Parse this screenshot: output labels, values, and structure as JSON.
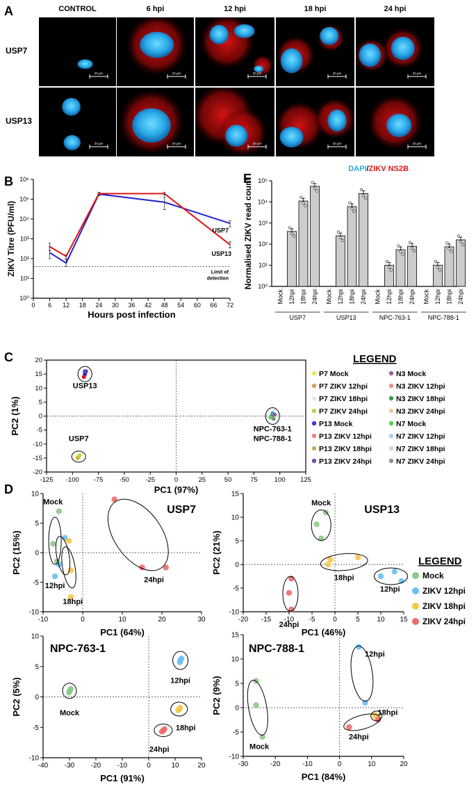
{
  "panelA": {
    "letter": "A",
    "columns": [
      "CONTROL",
      "6 hpi",
      "12 hpi",
      "18 hpi",
      "24 hpi"
    ],
    "rows": [
      "USP7",
      "USP13"
    ],
    "scalebars": [
      [
        "20 µm",
        "20 µm",
        "20 µm",
        "20 µm",
        "20 µm"
      ],
      [
        "20 µm",
        "20 µm",
        "20 µm",
        "20 µm",
        "20 µm"
      ]
    ],
    "legend_dapi": "DAPI",
    "legend_sep": "/",
    "legend_ns2b": "ZIKV NS2B",
    "colors": {
      "dapi": "#2aa9e8",
      "ns2b": "#e01515"
    }
  },
  "panelB": {
    "letter": "B"
  },
  "panelC": {
    "letter": "C"
  },
  "panelD": {
    "letter": "D"
  },
  "panelE": {
    "letter": "E"
  },
  "chart_data": [
    {
      "id": "B",
      "type": "line",
      "xlabel": "Hours post infection",
      "ylabel": "ZIKV Titre (PFU/ml)",
      "xticks": [
        0,
        6,
        12,
        18,
        24,
        30,
        36,
        42,
        48,
        54,
        60,
        66,
        72
      ],
      "xlim": [
        0,
        72
      ],
      "yscale": "log",
      "ylim": [
        1,
        1000000
      ],
      "yticks": [
        "10⁰",
        "10¹",
        "10²",
        "10³",
        "10⁴",
        "10⁵",
        "10⁶"
      ],
      "x": [
        6,
        12,
        24,
        48,
        72
      ],
      "series": [
        {
          "name": "USP7",
          "color": "#2020d0",
          "values": [
            200,
            60,
            180000,
            70000,
            6000
          ],
          "err": [
            [
              100,
              400
            ],
            [
              40,
              90
            ],
            [
              150000,
              220000
            ],
            [
              30000,
              130000
            ],
            [
              4000,
              8000
            ]
          ]
        },
        {
          "name": "USP13",
          "color": "#e01515",
          "values": [
            400,
            130,
            190000,
            190000,
            500
          ],
          "err": [
            [
              250,
              600
            ],
            [
              100,
              160
            ],
            [
              160000,
              220000
            ],
            [
              160000,
              220000
            ],
            [
              350,
              700
            ]
          ]
        }
      ],
      "limit_of_detection": 40,
      "limit_label": [
        "Limit of",
        "detection"
      ],
      "series_labels": [
        "USP7",
        "USP13"
      ]
    },
    {
      "id": "E",
      "type": "bar",
      "ylabel": "Normalised ZIKV read count",
      "yscale": "log",
      "ylim": [
        1,
        100000
      ],
      "yticks": [
        "10⁰",
        "10¹",
        "10²",
        "10³",
        "10⁴",
        "10⁵"
      ],
      "groups": [
        {
          "name": "USP7",
          "categories": [
            "Mock",
            "12hpi",
            "18hpi",
            "24hpi"
          ],
          "values": [
            1,
            400,
            11000,
            55000
          ]
        },
        {
          "name": "USP13",
          "categories": [
            "Mock",
            "12hpi",
            "18hpi",
            "24hpi"
          ],
          "values": [
            1,
            250,
            6000,
            25000
          ]
        },
        {
          "name": "NPC-763-1",
          "categories": [
            "Mock",
            "12hpi",
            "18hpi",
            "24hpi"
          ],
          "values": [
            1,
            10,
            55,
            80
          ]
        },
        {
          "name": "NPC-788-1",
          "categories": [
            "Mock",
            "12hpi",
            "18hpi",
            "24hpi"
          ],
          "values": [
            1,
            10,
            75,
            160
          ]
        }
      ]
    },
    {
      "id": "C",
      "type": "scatter",
      "xlabel": "PC1 (97%)",
      "ylabel": "PC2 (1%)",
      "xlim": [
        -125,
        125
      ],
      "ylim": [
        -20,
        20
      ],
      "xticks": [
        -125,
        -100,
        -75,
        -50,
        -25,
        0,
        25,
        50,
        75,
        100,
        125
      ],
      "yticks": [
        -20,
        -15,
        -10,
        -5,
        0,
        5,
        10,
        15,
        20
      ],
      "clusters": [
        {
          "label": "USP13",
          "points": [
            [
              -88,
              15,
              "#2020d0"
            ],
            [
              -89,
              14,
              "#e01515"
            ],
            [
              -87,
              16,
              "#6a2fb0"
            ],
            [
              -88,
              16,
              "#4a4ad0"
            ]
          ]
        },
        {
          "label": "USP7",
          "points": [
            [
              -94,
              -14.5,
              "#e8c820"
            ],
            [
              -93,
              -14,
              "#d8d040"
            ],
            [
              -95,
              -15,
              "#c8b830"
            ]
          ]
        },
        {
          "label": "NPC-763-1\nNPC-788-1",
          "points": [
            [
              92,
              0,
              "#3aa040"
            ],
            [
              94,
              -1,
              "#888888"
            ],
            [
              93,
              1,
              "#2aa9e8"
            ],
            [
              91,
              -0.5,
              "#66cc66"
            ],
            [
              95,
              0.5,
              "#9a5aa0"
            ]
          ]
        }
      ],
      "legend_title": "LEGEND",
      "legend": [
        {
          "label": "P7 Mock",
          "color": "#f0e84a"
        },
        {
          "label": "P7 ZIKV 12hpi",
          "color": "#d4a060"
        },
        {
          "label": "P7 ZIKV 18hpi",
          "color": "#e8e8e8"
        },
        {
          "label": "P7 ZIKV 24hpi",
          "color": "#c8c858"
        },
        {
          "label": "P13 Mock",
          "color": "#3a3ad8"
        },
        {
          "label": "P13 ZIKV 12hpi",
          "color": "#f08080"
        },
        {
          "label": "P13 ZIKV 18hpi",
          "color": "#c8a860"
        },
        {
          "label": "P13 ZIKV 24hpi",
          "color": "#7050a8"
        },
        {
          "label": "N3 Mock",
          "color": "#a0609a"
        },
        {
          "label": "N3 ZIKV 12hpi",
          "color": "#e89090"
        },
        {
          "label": "N3 ZIKV 18hpi",
          "color": "#3a9a50"
        },
        {
          "label": "N3 ZIKV 24hpi",
          "color": "#f0c8a0"
        },
        {
          "label": "N7 Mock",
          "color": "#50d050"
        },
        {
          "label": "N7 ZIKV 12hpi",
          "color": "#a8d0f0"
        },
        {
          "label": "N7 ZIKV 18hpi",
          "color": "#c0d8f0"
        },
        {
          "label": "N7 ZIKV 24hpi",
          "color": "#909090"
        }
      ]
    },
    {
      "id": "D1",
      "type": "scatter",
      "title": "USP7",
      "xlabel": "PC1 (64%)",
      "ylabel": "PC2 (15%)",
      "xlim": [
        -10,
        30
      ],
      "ylim": [
        -10,
        10
      ],
      "xticks": [
        -10,
        0,
        10,
        20,
        30
      ],
      "yticks": [
        -10,
        -5,
        0,
        5,
        10
      ],
      "groups": [
        {
          "label": "Mock",
          "color": "#8fc98a",
          "points": [
            [
              -6,
              7
            ],
            [
              -7.5,
              1.5
            ],
            [
              -6.5,
              -1.5
            ]
          ]
        },
        {
          "label": "12hpi",
          "color": "#6cc0f0",
          "points": [
            [
              -4.5,
              2.5
            ],
            [
              -6,
              -2
            ],
            [
              -7,
              -4
            ]
          ]
        },
        {
          "label": "18hpi",
          "color": "#f5c84a",
          "points": [
            [
              -3.5,
              2
            ],
            [
              -3,
              -3
            ],
            [
              -3,
              -7.5
            ]
          ]
        },
        {
          "label": "24hpi",
          "color": "#ee6a6a",
          "points": [
            [
              8,
              9
            ],
            [
              15,
              -2.5
            ],
            [
              21,
              -2.5
            ]
          ]
        }
      ]
    },
    {
      "id": "D2",
      "type": "scatter",
      "title": "USP13",
      "xlabel": "PC1 (46%)",
      "ylabel": "PC2 (21%)",
      "xlim": [
        -20,
        15
      ],
      "ylim": [
        -10,
        15
      ],
      "xticks": [
        -20,
        -15,
        -10,
        -5,
        0,
        5,
        10,
        15
      ],
      "yticks": [
        -10,
        -5,
        0,
        5,
        10,
        15
      ],
      "groups": [
        {
          "label": "Mock",
          "color": "#8fc98a",
          "points": [
            [
              -2,
              11
            ],
            [
              -4,
              8.5
            ],
            [
              -3,
              5.5
            ]
          ]
        },
        {
          "label": "ZIKV 12hpi",
          "color": "#6cc0f0",
          "points": [
            [
              10,
              -2.5
            ],
            [
              13,
              -1.5
            ],
            [
              14.5,
              -3.5
            ]
          ]
        },
        {
          "label": "ZIKV 18hpi",
          "color": "#f5c84a",
          "points": [
            [
              -1,
              1
            ],
            [
              5,
              1.5
            ],
            [
              -1.5,
              0
            ]
          ]
        },
        {
          "label": "ZIKV 24hpi",
          "color": "#ee6a6a",
          "points": [
            [
              -9.5,
              -3
            ],
            [
              -10,
              -6
            ],
            [
              -9.5,
              -9.5
            ]
          ]
        }
      ],
      "legend_title": "LEGEND",
      "legend": [
        {
          "label": "Mock",
          "color": "#8fc98a"
        },
        {
          "label": "ZIKV 12hpi",
          "color": "#6cc0f0"
        },
        {
          "label": "ZIKV 18hpi",
          "color": "#f5c84a"
        },
        {
          "label": "ZIKV 24hpi",
          "color": "#ee6a6a"
        }
      ],
      "cluster_labels": [
        "Mock",
        "18hpi",
        "12hpi",
        "24hpi"
      ]
    },
    {
      "id": "D3",
      "type": "scatter",
      "title": "NPC-763-1",
      "xlabel": "PC1 (91%)",
      "ylabel": "PC2 (5%)",
      "xlim": [
        -40,
        20
      ],
      "ylim": [
        -10,
        10
      ],
      "xticks": [
        -40,
        -30,
        -20,
        -10,
        0,
        10,
        20
      ],
      "yticks": [
        -10,
        -5,
        0,
        5,
        10
      ],
      "groups": [
        {
          "label": "Mock",
          "color": "#8fc98a",
          "points": [
            [
              -30,
              1
            ],
            [
              -29.5,
              1.3
            ],
            [
              -30.2,
              0.7
            ]
          ]
        },
        {
          "label": "12hpi",
          "color": "#6cc0f0",
          "points": [
            [
              12,
              6
            ],
            [
              12.4,
              6.3
            ],
            [
              11.8,
              5.7
            ]
          ]
        },
        {
          "label": "18hpi",
          "color": "#f5c84a",
          "points": [
            [
              11.5,
              -2
            ],
            [
              11.9,
              -1.8
            ],
            [
              11.2,
              -2.2
            ]
          ]
        },
        {
          "label": "24hpi",
          "color": "#ee6a6a",
          "points": [
            [
              5.5,
              -5.5
            ],
            [
              6,
              -5.3
            ],
            [
              5,
              -5.7
            ]
          ]
        }
      ]
    },
    {
      "id": "D4",
      "type": "scatter",
      "title": "NPC-788-1",
      "xlabel": "PC1 (84%)",
      "ylabel": "PC2 (9%)",
      "xlim": [
        -30,
        20
      ],
      "ylim": [
        -10,
        15
      ],
      "xticks": [
        -30,
        -20,
        -10,
        0,
        10,
        20
      ],
      "yticks": [
        -10,
        -5,
        0,
        5,
        10,
        15
      ],
      "groups": [
        {
          "label": "Mock",
          "color": "#8fc98a",
          "points": [
            [
              -26,
              5.5
            ],
            [
              -26,
              0.5
            ],
            [
              -24,
              -6
            ]
          ]
        },
        {
          "label": "12hpi",
          "color": "#6cc0f0",
          "points": [
            [
              6,
              12.5
            ],
            [
              8,
              1
            ]
          ]
        },
        {
          "label": "18hpi",
          "color": "#f5c84a",
          "points": [
            [
              11,
              -1.5
            ],
            [
              11.5,
              -2
            ]
          ]
        },
        {
          "label": "24hpi",
          "color": "#ee6a6a",
          "points": [
            [
              3,
              -4
            ],
            [
              12,
              -2.5
            ]
          ]
        }
      ]
    }
  ]
}
